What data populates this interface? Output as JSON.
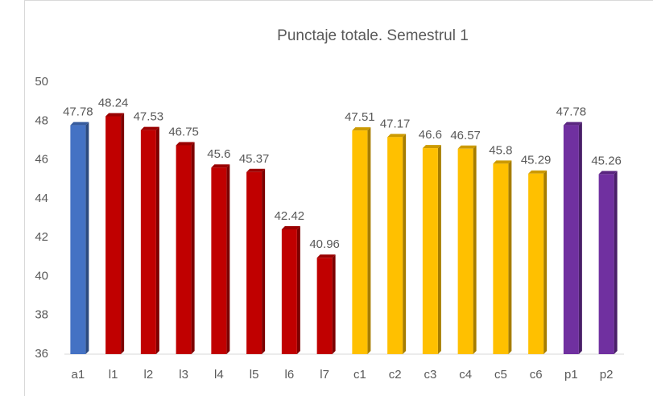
{
  "chart_data": {
    "type": "bar",
    "title": "Punctaje totale. Semestrul 1",
    "categories": [
      "a1",
      "l1",
      "l2",
      "l3",
      "l4",
      "l5",
      "l6",
      "l7",
      "c1",
      "c2",
      "c3",
      "c4",
      "c5",
      "c6",
      "p1",
      "p2"
    ],
    "values": [
      47.78,
      48.24,
      47.53,
      46.75,
      45.6,
      45.37,
      42.42,
      40.96,
      47.51,
      47.17,
      46.6,
      46.57,
      45.8,
      45.29,
      47.78,
      45.26
    ],
    "colors": [
      "#4472c4",
      "#c00000",
      "#c00000",
      "#c00000",
      "#c00000",
      "#c00000",
      "#c00000",
      "#c00000",
      "#ffc000",
      "#ffc000",
      "#ffc000",
      "#ffc000",
      "#ffc000",
      "#ffc000",
      "#7030a0",
      "#7030a0"
    ],
    "ylim": [
      36,
      50
    ],
    "yticks": [
      36,
      38,
      40,
      42,
      44,
      46,
      48,
      50
    ]
  }
}
